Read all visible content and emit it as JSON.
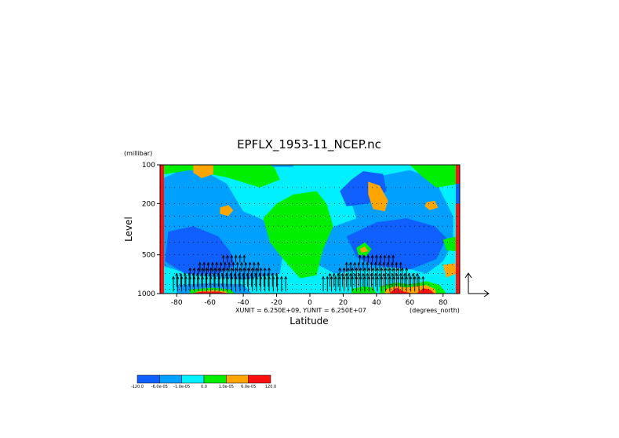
{
  "chart_data": {
    "type": "heatmap",
    "title": "EPFLX_1953-11_NCEP.nc",
    "xlabel": "Latitude",
    "ylabel": "Level",
    "x_units": "(degrees_north)",
    "y_units": "(millibar)",
    "vector_units": "XUNIT = 6.250E+09, YUNIT = 6.250E+07",
    "x_range": [
      -90,
      90
    ],
    "y_range": [
      1000,
      100
    ],
    "y_scale": "log",
    "x_ticks": [
      "-80",
      "-60",
      "-40",
      "-20",
      "0",
      "20",
      "40",
      "60",
      "80"
    ],
    "x_tick_values": [
      -80,
      -60,
      -40,
      -20,
      0,
      20,
      40,
      60,
      80
    ],
    "y_ticks": [
      "100",
      "200",
      "500",
      "1000"
    ],
    "y_tick_values": [
      100,
      200,
      500,
      1000
    ],
    "colorbar": {
      "labels": [
        "-120.0",
        "-6.0e-05",
        "-1.0e-05",
        "0.0",
        "1.0e-05",
        "6.0e-05",
        "120.0"
      ],
      "colors": [
        "#1060ff",
        "#00a0ff",
        "#00f0ff",
        "#00ee00",
        "#ffa500",
        "#ff1010"
      ]
    },
    "palette": {
      "dark": "#1060ff",
      "mid": "#00a0ff",
      "cyan": "#00f0ff",
      "green": "#00ee00",
      "orange": "#ffa500",
      "red": "#ff1010"
    },
    "regions": [
      {
        "level": "mid",
        "points": [
          [
            -90,
            130
          ],
          [
            -70,
            100
          ],
          [
            -50,
            140
          ],
          [
            -40,
            230
          ],
          [
            -30,
            260
          ],
          [
            -22,
            300
          ],
          [
            -15,
            380
          ],
          [
            -18,
            700
          ],
          [
            -40,
            780
          ],
          [
            -70,
            720
          ],
          [
            -90,
            600
          ]
        ]
      },
      {
        "level": "dark",
        "points": [
          [
            -85,
            330
          ],
          [
            -70,
            300
          ],
          [
            -55,
            360
          ],
          [
            -48,
            470
          ],
          [
            -45,
            600
          ],
          [
            -55,
            700
          ],
          [
            -75,
            700
          ],
          [
            -87,
            560
          ]
        ]
      },
      {
        "level": "mid",
        "points": [
          [
            -12,
            560
          ],
          [
            5,
            600
          ],
          [
            15,
            700
          ],
          [
            30,
            650
          ],
          [
            55,
            620
          ],
          [
            70,
            700
          ],
          [
            80,
            560
          ],
          [
            86,
            400
          ],
          [
            86,
            250
          ],
          [
            75,
            130
          ],
          [
            60,
            110
          ],
          [
            45,
            120
          ],
          [
            30,
            150
          ],
          [
            25,
            200
          ],
          [
            28,
            260
          ],
          [
            15,
            300
          ],
          [
            8,
            330
          ],
          [
            -2,
            460
          ],
          [
            -12,
            500
          ]
        ]
      },
      {
        "level": "dark",
        "points": [
          [
            25,
            130
          ],
          [
            32,
            112
          ],
          [
            44,
            118
          ],
          [
            46,
            160
          ],
          [
            35,
            200
          ],
          [
            22,
            210
          ],
          [
            18,
            160
          ]
        ]
      },
      {
        "level": "dark",
        "points": [
          [
            22,
            360
          ],
          [
            40,
            280
          ],
          [
            58,
            260
          ],
          [
            75,
            300
          ],
          [
            82,
            370
          ],
          [
            76,
            540
          ],
          [
            60,
            650
          ],
          [
            38,
            600
          ],
          [
            28,
            520
          ]
        ]
      },
      {
        "level": "green",
        "points": [
          [
            -90,
            100
          ],
          [
            -22,
            100
          ],
          [
            -18,
            130
          ],
          [
            -30,
            150
          ],
          [
            -50,
            125
          ],
          [
            -72,
            110
          ],
          [
            -90,
            120
          ]
        ]
      },
      {
        "level": "green",
        "points": [
          [
            -28,
            260
          ],
          [
            -20,
            200
          ],
          [
            -10,
            170
          ],
          [
            4,
            160
          ],
          [
            10,
            200
          ],
          [
            14,
            300
          ],
          [
            8,
            450
          ],
          [
            4,
            720
          ],
          [
            -6,
            760
          ],
          [
            -16,
            540
          ],
          [
            -24,
            400
          ]
        ]
      },
      {
        "level": "green",
        "points": [
          [
            60,
            100
          ],
          [
            90,
            100
          ],
          [
            90,
            140
          ],
          [
            76,
            150
          ],
          [
            68,
            125
          ]
        ]
      },
      {
        "level": "green",
        "points": [
          [
            80,
            380
          ],
          [
            88,
            360
          ],
          [
            88,
            470
          ],
          [
            82,
            460
          ]
        ]
      },
      {
        "level": "green",
        "points": [
          [
            28,
            440
          ],
          [
            33,
            400
          ],
          [
            37,
            450
          ],
          [
            34,
            510
          ],
          [
            29,
            500
          ]
        ]
      },
      {
        "level": "orange",
        "points": [
          [
            -70,
            100
          ],
          [
            -58,
            100
          ],
          [
            -58,
            118
          ],
          [
            -65,
            127
          ],
          [
            -70,
            115
          ]
        ]
      },
      {
        "level": "orange",
        "points": [
          [
            -54,
            215
          ],
          [
            -49,
            205
          ],
          [
            -46,
            225
          ],
          [
            -49,
            250
          ],
          [
            -54,
            240
          ]
        ]
      },
      {
        "level": "orange",
        "points": [
          [
            35,
            135
          ],
          [
            42,
            145
          ],
          [
            47,
            190
          ],
          [
            45,
            230
          ],
          [
            38,
            220
          ],
          [
            35,
            170
          ]
        ]
      },
      {
        "level": "orange",
        "points": [
          [
            70,
            195
          ],
          [
            75,
            190
          ],
          [
            77,
            215
          ],
          [
            72,
            225
          ],
          [
            69,
            210
          ]
        ]
      },
      {
        "level": "orange",
        "points": [
          [
            30,
            450
          ],
          [
            33,
            430
          ],
          [
            35,
            470
          ],
          [
            31,
            480
          ]
        ]
      },
      {
        "level": "cyan",
        "points": [
          [
            -15,
            100
          ],
          [
            -6,
            100
          ],
          [
            -6,
            115
          ],
          [
            -12,
            120
          ]
        ]
      },
      {
        "level": "mid",
        "points": [
          [
            -24,
            95
          ],
          [
            -10,
            95
          ],
          [
            -10,
            104
          ],
          [
            -22,
            104
          ]
        ]
      },
      {
        "level": "dark",
        "points": [
          [
            -75,
            990
          ],
          [
            -60,
            960
          ],
          [
            -45,
            970
          ],
          [
            -40,
            1010
          ],
          [
            -75,
            1010
          ]
        ]
      },
      {
        "level": "mid",
        "points": [
          [
            -80,
            860
          ],
          [
            -60,
            830
          ],
          [
            -40,
            850
          ],
          [
            -35,
            1010
          ],
          [
            -80,
            1010
          ]
        ]
      },
      {
        "level": "green",
        "points": [
          [
            -72,
            930
          ],
          [
            -58,
            900
          ],
          [
            -48,
            930
          ],
          [
            -45,
            1010
          ],
          [
            -72,
            1010
          ]
        ]
      },
      {
        "level": "orange",
        "points": [
          [
            -68,
            965
          ],
          [
            -58,
            940
          ],
          [
            -50,
            965
          ],
          [
            -50,
            1010
          ],
          [
            -68,
            1010
          ]
        ]
      },
      {
        "level": "red",
        "points": [
          [
            -70,
            990
          ],
          [
            -65,
            965
          ],
          [
            -55,
            965
          ],
          [
            -50,
            990
          ],
          [
            -50,
            1010
          ],
          [
            -70,
            1010
          ]
        ]
      },
      {
        "level": "green",
        "points": [
          [
            42,
            880
          ],
          [
            52,
            820
          ],
          [
            60,
            850
          ],
          [
            70,
            800
          ],
          [
            78,
            860
          ],
          [
            82,
            1010
          ],
          [
            42,
            1010
          ]
        ]
      },
      {
        "level": "orange",
        "points": [
          [
            45,
            930
          ],
          [
            52,
            870
          ],
          [
            58,
            900
          ],
          [
            63,
            880
          ],
          [
            70,
            860
          ],
          [
            75,
            920
          ],
          [
            76,
            1010
          ],
          [
            45,
            1010
          ]
        ]
      },
      {
        "level": "red",
        "points": [
          [
            48,
            980
          ],
          [
            52,
            900
          ],
          [
            56,
            960
          ],
          [
            62,
            1010
          ],
          [
            48,
            1010
          ]
        ]
      },
      {
        "level": "red",
        "points": [
          [
            64,
            1000
          ],
          [
            68,
            910
          ],
          [
            72,
            930
          ],
          [
            75,
            1010
          ],
          [
            64,
            1010
          ]
        ]
      },
      {
        "level": "orange",
        "points": [
          [
            80,
            600
          ],
          [
            87,
            580
          ],
          [
            88,
            700
          ],
          [
            82,
            750
          ]
        ]
      },
      {
        "level": "green",
        "points": [
          [
            25,
            920
          ],
          [
            32,
            880
          ],
          [
            38,
            900
          ],
          [
            40,
            1010
          ],
          [
            25,
            1010
          ]
        ]
      }
    ],
    "side_strips": {
      "left": [
        {
          "from": 100,
          "to": 1000,
          "level": "red"
        }
      ],
      "right": [
        {
          "from": 100,
          "to": 140,
          "level": "red"
        },
        {
          "from": 140,
          "to": 200,
          "level": "dark"
        },
        {
          "from": 200,
          "to": 1000,
          "level": "red"
        }
      ]
    },
    "dotted_levels": [
      150,
      200,
      250,
      300,
      400,
      500,
      600,
      700,
      850,
      925
    ],
    "vector_rows": [
      {
        "p": 550,
        "lat_ranges": [
          [
            -52,
            -38
          ],
          [
            30,
            52
          ]
        ],
        "len": 6
      },
      {
        "p": 650,
        "lat_ranges": [
          [
            -66,
            -30
          ],
          [
            22,
            56
          ]
        ],
        "len": 9
      },
      {
        "p": 750,
        "lat_ranges": [
          [
            -72,
            -24
          ],
          [
            18,
            60
          ]
        ],
        "len": 12
      },
      {
        "p": 850,
        "lat_ranges": [
          [
            -80,
            -18
          ],
          [
            12,
            66
          ]
        ],
        "len": 14
      },
      {
        "p": 925,
        "lat_ranges": [
          [
            -82,
            -14
          ],
          [
            8,
            70
          ]
        ],
        "len": 16
      }
    ],
    "vector_spacing_deg": 2.5
  }
}
